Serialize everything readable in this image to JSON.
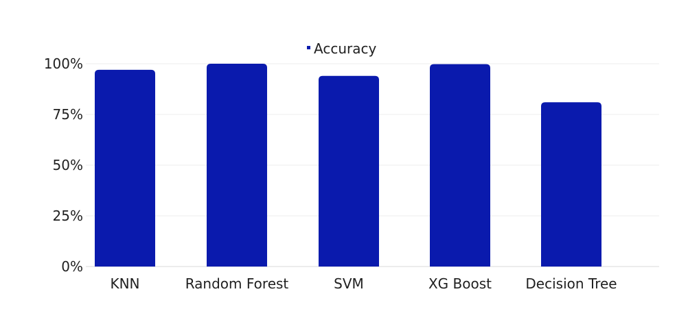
{
  "chart_data": {
    "type": "bar",
    "categories": [
      "KNN",
      "Random Forest",
      "SVM",
      "XG Boost",
      "Decision Tree"
    ],
    "series": [
      {
        "name": "Accuracy",
        "values": [
          0.97,
          1.0,
          0.94,
          0.998,
          0.81
        ],
        "color": "#0a1aad"
      }
    ],
    "ylim": [
      0,
      1
    ],
    "yticks": [
      0,
      0.25,
      0.5,
      0.75,
      1.0
    ],
    "ytick_labels": [
      "0%",
      "25%",
      "50%",
      "75%",
      "100%"
    ],
    "grid": true,
    "legend": {
      "position": "top-center",
      "label": "Accuracy"
    },
    "title": "",
    "xlabel": "",
    "ylabel": ""
  }
}
